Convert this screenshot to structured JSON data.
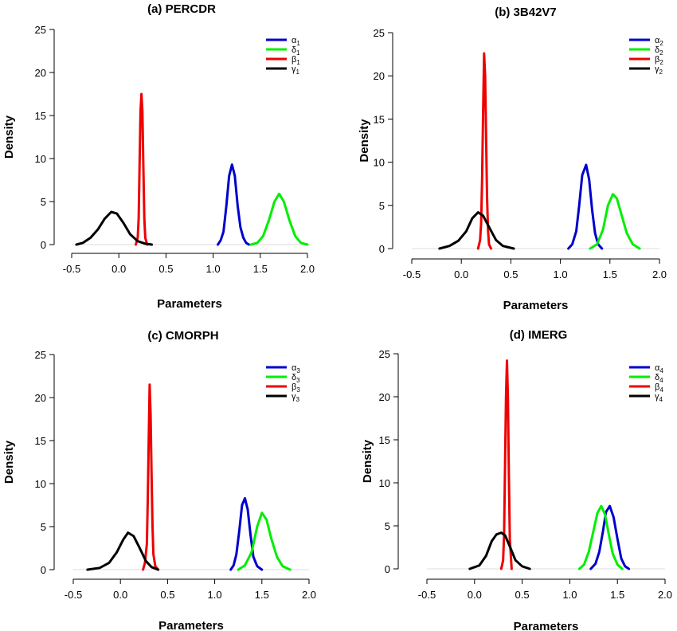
{
  "chart_data": [
    {
      "type": "line",
      "title": "(a) PERCDR",
      "xlabel": "Parameters",
      "ylabel": "Density",
      "xlim": [
        -0.5,
        2.0
      ],
      "ylim": [
        0,
        25
      ],
      "xticks": [
        "-0.5",
        "0.0",
        "0.5",
        "1.0",
        "1.5",
        "2.0"
      ],
      "yticks": [
        "0",
        "5",
        "10",
        "15",
        "20",
        "25"
      ],
      "legend_position": "top-right",
      "series": [
        {
          "name": "α",
          "subscript": "1",
          "color": "#0000cc",
          "x": [
            1.05,
            1.08,
            1.11,
            1.14,
            1.17,
            1.2,
            1.23,
            1.26,
            1.29,
            1.32,
            1.35,
            1.38
          ],
          "y": [
            0.0,
            0.5,
            1.5,
            4.5,
            8.0,
            9.3,
            8.0,
            4.5,
            2.0,
            0.8,
            0.2,
            0.0
          ]
        },
        {
          "name": "δ",
          "subscript": "1",
          "color": "#00ee00",
          "x": [
            1.4,
            1.47,
            1.53,
            1.59,
            1.65,
            1.7,
            1.75,
            1.81,
            1.87,
            1.93,
            2.0
          ],
          "y": [
            0.0,
            0.2,
            1.0,
            2.8,
            5.0,
            5.9,
            5.0,
            2.8,
            1.0,
            0.2,
            0.0
          ]
        },
        {
          "name": "β",
          "subscript": "1",
          "color": "#ee0000",
          "x": [
            0.18,
            0.2,
            0.21,
            0.22,
            0.23,
            0.24,
            0.25,
            0.26,
            0.27,
            0.28,
            0.3
          ],
          "y": [
            0.0,
            0.8,
            3.0,
            9.0,
            15.5,
            17.5,
            15.5,
            9.0,
            3.0,
            0.8,
            0.0
          ]
        },
        {
          "name": "γ",
          "subscript": "1",
          "color": "#000000",
          "x": [
            -0.45,
            -0.38,
            -0.3,
            -0.22,
            -0.15,
            -0.08,
            -0.02,
            0.05,
            0.12,
            0.2,
            0.28,
            0.35
          ],
          "y": [
            0.0,
            0.2,
            0.8,
            1.8,
            3.0,
            3.8,
            3.6,
            2.5,
            1.2,
            0.4,
            0.1,
            0.0
          ]
        }
      ]
    },
    {
      "type": "line",
      "title": "(b) 3B42V7",
      "xlabel": "Parameters",
      "ylabel": "Density",
      "xlim": [
        -0.5,
        2.0
      ],
      "ylim": [
        0,
        25
      ],
      "xticks": [
        "-0.5",
        "0.0",
        "0.5",
        "1.0",
        "1.5",
        "2.0"
      ],
      "yticks": [
        "0",
        "5",
        "10",
        "15",
        "20",
        "25"
      ],
      "legend_position": "top-right",
      "series": [
        {
          "name": "α",
          "subscript": "2",
          "color": "#0000cc",
          "x": [
            1.08,
            1.12,
            1.16,
            1.19,
            1.22,
            1.26,
            1.29,
            1.32,
            1.35,
            1.38,
            1.42
          ],
          "y": [
            0.0,
            0.5,
            2.0,
            5.0,
            8.5,
            9.7,
            8.0,
            4.5,
            1.8,
            0.5,
            0.0
          ]
        },
        {
          "name": "δ",
          "subscript": "2",
          "color": "#00ee00",
          "x": [
            1.3,
            1.37,
            1.43,
            1.48,
            1.53,
            1.57,
            1.62,
            1.67,
            1.73,
            1.8
          ],
          "y": [
            0.0,
            0.5,
            2.2,
            5.0,
            6.3,
            5.8,
            3.8,
            1.8,
            0.5,
            0.0
          ]
        },
        {
          "name": "β",
          "subscript": "2",
          "color": "#ee0000",
          "x": [
            0.17,
            0.19,
            0.2,
            0.21,
            0.22,
            0.23,
            0.24,
            0.25,
            0.26,
            0.27,
            0.28,
            0.3
          ],
          "y": [
            0.0,
            1.0,
            3.0,
            8.0,
            16.0,
            22.6,
            20.0,
            13.0,
            6.0,
            2.0,
            0.5,
            0.0
          ]
        },
        {
          "name": "γ",
          "subscript": "2",
          "color": "#000000",
          "x": [
            -0.22,
            -0.12,
            -0.03,
            0.05,
            0.11,
            0.17,
            0.22,
            0.28,
            0.35,
            0.42,
            0.53
          ],
          "y": [
            0.0,
            0.3,
            0.9,
            2.0,
            3.5,
            4.2,
            3.8,
            2.5,
            1.0,
            0.3,
            0.0
          ]
        }
      ]
    },
    {
      "type": "line",
      "title": "(c) CMORPH",
      "xlabel": "Parameters",
      "ylabel": "Density",
      "xlim": [
        -0.5,
        2.0
      ],
      "ylim": [
        0,
        25
      ],
      "xticks": [
        "-0.5",
        "0.0",
        "0.5",
        "1.0",
        "1.5",
        "2.0"
      ],
      "yticks": [
        "0",
        "5",
        "10",
        "15",
        "20",
        "25"
      ],
      "legend_position": "top-right",
      "series": [
        {
          "name": "α",
          "subscript": "3",
          "color": "#0000cc",
          "x": [
            1.17,
            1.2,
            1.23,
            1.26,
            1.29,
            1.32,
            1.35,
            1.38,
            1.41,
            1.45,
            1.5
          ],
          "y": [
            0.0,
            0.5,
            1.8,
            4.5,
            7.5,
            8.3,
            7.0,
            4.0,
            1.5,
            0.4,
            0.0
          ]
        },
        {
          "name": "δ",
          "subscript": "3",
          "color": "#00ee00",
          "x": [
            1.25,
            1.32,
            1.39,
            1.45,
            1.5,
            1.55,
            1.6,
            1.66,
            1.72,
            1.8
          ],
          "y": [
            0.0,
            0.5,
            2.0,
            5.0,
            6.6,
            5.8,
            3.6,
            1.5,
            0.4,
            0.0
          ]
        },
        {
          "name": "β",
          "subscript": "3",
          "color": "#ee0000",
          "x": [
            0.24,
            0.26,
            0.28,
            0.29,
            0.3,
            0.31,
            0.32,
            0.33,
            0.34,
            0.35,
            0.37,
            0.4
          ],
          "y": [
            0.0,
            0.8,
            3.0,
            8.0,
            15.0,
            21.5,
            18.0,
            11.0,
            5.0,
            1.8,
            0.4,
            0.0
          ]
        },
        {
          "name": "γ",
          "subscript": "3",
          "color": "#000000",
          "x": [
            -0.35,
            -0.22,
            -0.12,
            -0.04,
            0.03,
            0.08,
            0.14,
            0.2,
            0.27,
            0.33,
            0.4
          ],
          "y": [
            0.0,
            0.2,
            0.8,
            2.0,
            3.5,
            4.3,
            3.9,
            2.6,
            1.0,
            0.3,
            0.0
          ]
        }
      ]
    },
    {
      "type": "line",
      "title": "(d) IMERG",
      "xlabel": "Parameters",
      "ylabel": "Density",
      "xlim": [
        -0.5,
        2.0
      ],
      "ylim": [
        0,
        25
      ],
      "xticks": [
        "-0.5",
        "0.0",
        "0.5",
        "1.0",
        "1.5",
        "2.0"
      ],
      "yticks": [
        "0",
        "5",
        "10",
        "15",
        "20",
        "25"
      ],
      "legend_position": "top-right",
      "series": [
        {
          "name": "α",
          "subscript": "4",
          "color": "#0000cc",
          "x": [
            1.22,
            1.27,
            1.31,
            1.35,
            1.38,
            1.42,
            1.46,
            1.5,
            1.54,
            1.58,
            1.62
          ],
          "y": [
            0.0,
            0.6,
            2.0,
            4.5,
            6.6,
            7.3,
            6.0,
            3.5,
            1.2,
            0.3,
            0.0
          ]
        },
        {
          "name": "δ",
          "subscript": "4",
          "color": "#00ee00",
          "x": [
            1.1,
            1.15,
            1.2,
            1.25,
            1.29,
            1.33,
            1.37,
            1.41,
            1.45,
            1.5,
            1.55
          ],
          "y": [
            0.0,
            0.5,
            2.0,
            4.5,
            6.5,
            7.3,
            6.3,
            4.0,
            1.8,
            0.5,
            0.0
          ]
        },
        {
          "name": "β",
          "subscript": "4",
          "color": "#ee0000",
          "x": [
            0.28,
            0.3,
            0.31,
            0.32,
            0.33,
            0.34,
            0.35,
            0.36,
            0.37,
            0.39
          ],
          "y": [
            0.0,
            1.0,
            4.0,
            12.0,
            20.0,
            24.2,
            20.0,
            11.0,
            3.5,
            0.0
          ]
        },
        {
          "name": "γ",
          "subscript": "4",
          "color": "#000000",
          "x": [
            -0.05,
            0.05,
            0.12,
            0.18,
            0.23,
            0.28,
            0.32,
            0.37,
            0.43,
            0.5,
            0.58
          ],
          "y": [
            0.0,
            0.4,
            1.5,
            3.2,
            4.0,
            4.2,
            3.9,
            2.6,
            1.0,
            0.3,
            0.0
          ]
        }
      ]
    }
  ]
}
